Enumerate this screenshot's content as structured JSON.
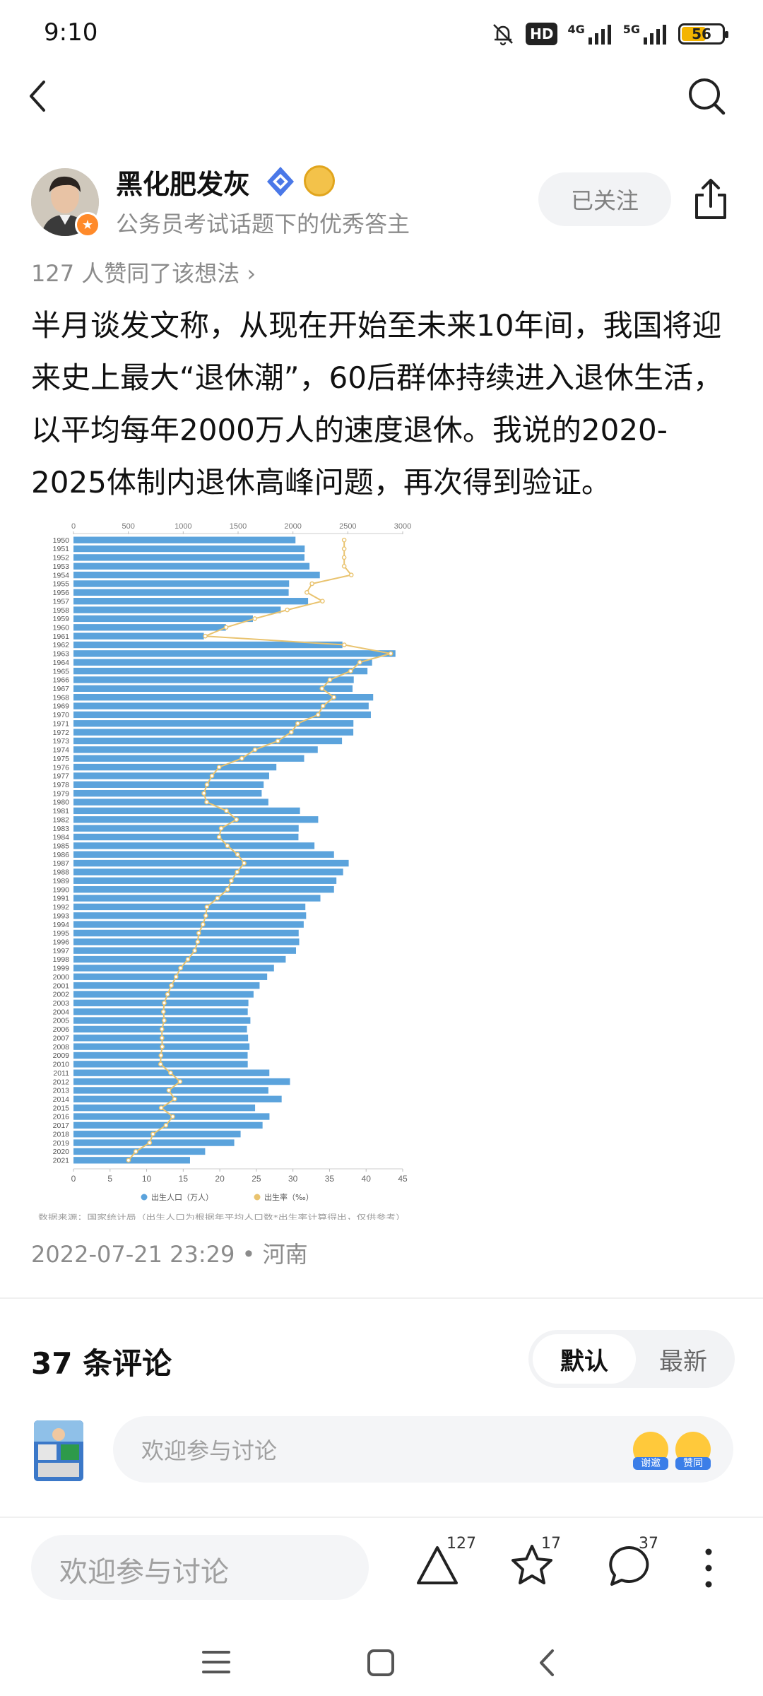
{
  "status_bar": {
    "time": "9:10",
    "hd": "HD",
    "net1": "4G",
    "net2": "5G",
    "battery": "56",
    "battery_level": 0.56
  },
  "author": {
    "name": "黑化肥发灰",
    "subtitle": "公务员考试话题下的优秀答主",
    "follow_label": "已关注"
  },
  "post": {
    "likes_line": "127 人赞同了该想法 ›",
    "content": "半月谈发文称，从现在开始至未来10年间，我国将迎来史上最大“退休潮”，60后群体持续进入退休生活，以平均每年2000万人的速度退休。我说的2020-2025体制内退休高峰问题，再次得到验证。",
    "meta": "2022-07-21 23:29 • 河南"
  },
  "chart_data": {
    "type": "bar",
    "orientation": "horizontal",
    "categories": [
      "1950",
      "1951",
      "1952",
      "1953",
      "1954",
      "1955",
      "1956",
      "1957",
      "1958",
      "1959",
      "1960",
      "1961",
      "1962",
      "1963",
      "1964",
      "1965",
      "1966",
      "1967",
      "1968",
      "1969",
      "1970",
      "1971",
      "1972",
      "1973",
      "1974",
      "1975",
      "1976",
      "1977",
      "1978",
      "1979",
      "1980",
      "1981",
      "1982",
      "1983",
      "1984",
      "1985",
      "1986",
      "1987",
      "1988",
      "1989",
      "1990",
      "1991",
      "1992",
      "1993",
      "1994",
      "1995",
      "1996",
      "1997",
      "1998",
      "1999",
      "2000",
      "2001",
      "2002",
      "2003",
      "2004",
      "2005",
      "2006",
      "2007",
      "2008",
      "2009",
      "2010",
      "2011",
      "2012",
      "2013",
      "2014",
      "2015",
      "2016",
      "2017",
      "2018",
      "2019",
      "2020",
      "2021"
    ],
    "series": [
      {
        "name": "出生人口（万人）",
        "color": "#5ba3dc",
        "axis": "top",
        "values": [
          2023,
          2107,
          2105,
          2151,
          2245,
          1965,
          1961,
          2138,
          1889,
          1635,
          1389,
          1188,
          2451,
          2934,
          2721,
          2679,
          2554,
          2543,
          2731,
          2690,
          2710,
          2551,
          2550,
          2447,
          2226,
          2102,
          1849,
          1783,
          1733,
          1715,
          1776,
          2064,
          2230,
          2052,
          2050,
          2196,
          2374,
          2508,
          2457,
          2396,
          2374,
          2250,
          2113,
          2120,
          2098,
          2052,
          2057,
          2028,
          1934,
          1827,
          1765,
          1696,
          1641,
          1594,
          1588,
          1612,
          1581,
          1591,
          1604,
          1587,
          1588,
          1785,
          1973,
          1776,
          1897,
          1655,
          1786,
          1723,
          1523,
          1465,
          1200,
          1062
        ]
      },
      {
        "name": "出生率（‰）",
        "color": "#e9c36f",
        "axis": "bottom",
        "values": [
          37.0,
          37.0,
          37.0,
          37.0,
          37.97,
          32.6,
          31.9,
          34.03,
          29.22,
          24.78,
          20.86,
          18.02,
          37.01,
          43.37,
          39.14,
          37.88,
          35.05,
          33.96,
          35.59,
          34.11,
          33.43,
          30.65,
          29.77,
          27.93,
          24.82,
          23.01,
          19.91,
          18.93,
          18.25,
          17.82,
          18.21,
          20.91,
          22.28,
          20.19,
          19.9,
          21.04,
          22.43,
          23.33,
          22.37,
          21.58,
          21.06,
          19.68,
          18.24,
          18.09,
          17.7,
          17.12,
          16.98,
          16.57,
          15.64,
          14.64,
          14.03,
          13.38,
          12.86,
          12.41,
          12.29,
          12.4,
          12.09,
          12.1,
          12.14,
          11.95,
          11.9,
          13.27,
          14.57,
          13.03,
          13.83,
          11.99,
          13.57,
          12.64,
          10.86,
          10.41,
          8.52,
          7.52
        ]
      }
    ],
    "top_axis_ticks": [
      0,
      500,
      1000,
      1500,
      2000,
      2500,
      3000
    ],
    "bottom_axis_ticks": [
      0,
      5,
      10,
      15,
      20,
      25,
      30,
      35,
      40,
      45
    ],
    "top_xlim": [
      0,
      3000
    ],
    "bottom_xlim": [
      0,
      45
    ],
    "legend": [
      "出生人口（万人）",
      "出生率（‰）"
    ],
    "legend_position": "bottom",
    "source_note": "数据来源：国家统计局（出生人口为根据年平均人口数*出生率计算得出，仅供参考）"
  },
  "comments": {
    "title": "37 条评论",
    "sort_default": "默认",
    "sort_latest": "最新",
    "input_placeholder": "欢迎参与讨论",
    "emoji1_label": "谢邀",
    "emoji2_label": "赞同"
  },
  "bottom_bar": {
    "input_placeholder": "欢迎参与讨论",
    "like_count": "127",
    "star_count": "17",
    "comment_count": "37"
  }
}
